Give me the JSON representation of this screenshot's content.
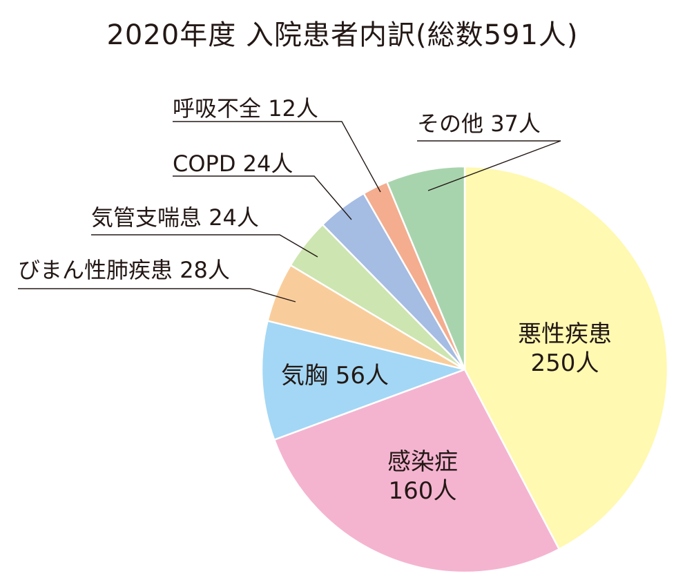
{
  "chart_data": {
    "type": "pie",
    "title": "2020年度 入院患者内訳(総数591人)",
    "slices": [
      {
        "name": "悪性疾患",
        "value": 250,
        "value_label": "250人",
        "color": "#fff9b1"
      },
      {
        "name": "感染症",
        "value": 160,
        "value_label": "160人",
        "color": "#f4b4d0"
      },
      {
        "name": "気胸",
        "value": 56,
        "value_label": "56人",
        "color": "#a3d7f5"
      },
      {
        "name": "びまん性肺疾患",
        "value": 28,
        "value_label": "28人",
        "color": "#f9cd9b"
      },
      {
        "name": "気管支喘息",
        "value": 24,
        "value_label": "24人",
        "color": "#cde5b0"
      },
      {
        "name": "COPD",
        "value": 24,
        "value_label": "24人",
        "color": "#a5bce3"
      },
      {
        "name": "呼吸不全",
        "value": 12,
        "value_label": "12人",
        "color": "#f4ad8f"
      },
      {
        "name": "その他",
        "value": 37,
        "value_label": "37人",
        "color": "#a8d4ad"
      }
    ],
    "start_angle_deg": 0,
    "direction": "clockwise"
  }
}
